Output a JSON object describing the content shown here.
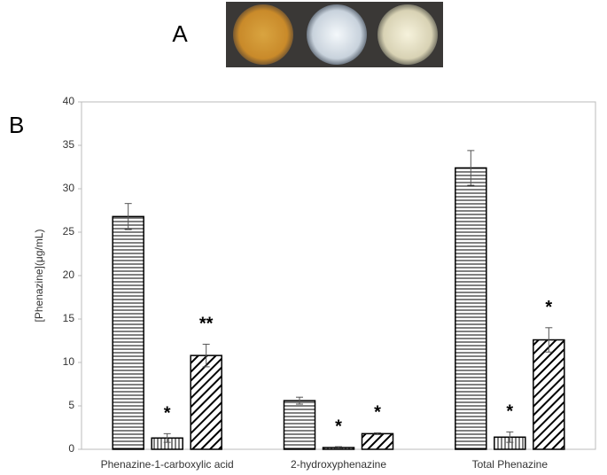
{
  "panel_a_label": "A",
  "chart_data": {
    "type": "bar",
    "panel_label": "B",
    "y_label": "[Phenazine](μg/mL)",
    "categories": [
      "Phenazine-1-carboxylic acid",
      "2-hydroxyphenazine",
      "Total Phenazine"
    ],
    "series": [
      {
        "color": "#000000",
        "pattern": "horizontal",
        "values": [
          26.8,
          5.6,
          32.4
        ],
        "errors": [
          1.5,
          0.4,
          2.0
        ],
        "annotations": [
          null,
          null,
          null
        ]
      },
      {
        "color": "#000000",
        "pattern": "vertical",
        "values": [
          1.3,
          0.2,
          1.4
        ],
        "errors": [
          0.5,
          0.1,
          0.6
        ],
        "annotations": [
          "*",
          "*",
          "*"
        ]
      },
      {
        "color": "#000000",
        "pattern": "diagonal",
        "values": [
          10.8,
          1.8,
          12.6
        ],
        "errors": [
          1.3,
          0.1,
          1.4
        ],
        "annotations": [
          "**",
          "*",
          "*"
        ]
      }
    ],
    "ylim": [
      0,
      40
    ],
    "yticks": [
      0,
      5,
      10,
      15,
      20,
      25,
      30,
      35,
      40
    ],
    "grid": false
  }
}
